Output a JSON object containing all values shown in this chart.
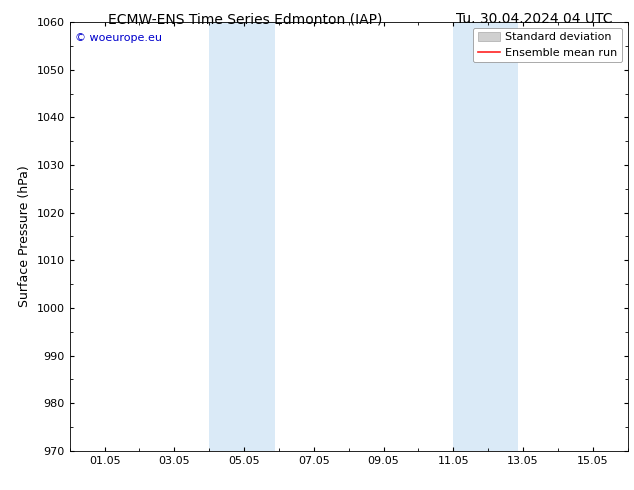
{
  "title_left": "ECMW-ENS Time Series Edmonton (IAP)",
  "title_right": "Tu. 30.04.2024 04 UTC",
  "ylabel": "Surface Pressure (hPa)",
  "ylim": [
    970,
    1060
  ],
  "yticks": [
    970,
    980,
    990,
    1000,
    1010,
    1020,
    1030,
    1040,
    1050,
    1060
  ],
  "xtick_labels": [
    "01.05",
    "03.05",
    "05.05",
    "07.05",
    "09.05",
    "11.05",
    "13.05",
    "15.05"
  ],
  "xtick_positions": [
    1,
    3,
    5,
    7,
    9,
    11,
    13,
    15
  ],
  "xlim": [
    0,
    16
  ],
  "shaded_bands": [
    {
      "x_start": 4.0,
      "x_end": 5.9
    },
    {
      "x_start": 11.0,
      "x_end": 12.85
    }
  ],
  "shade_color": "#daeaf7",
  "watermark_text": "© woeurope.eu",
  "watermark_color": "#0000cc",
  "legend_std_label": "Standard deviation",
  "legend_mean_label": "Ensemble mean run",
  "legend_std_facecolor": "#d0d0d0",
  "legend_std_edgecolor": "#aaaaaa",
  "legend_mean_color": "#ff2222",
  "bg_color": "#ffffff",
  "title_fontsize": 10,
  "tick_fontsize": 8,
  "ylabel_fontsize": 9,
  "watermark_fontsize": 8,
  "legend_fontsize": 8
}
